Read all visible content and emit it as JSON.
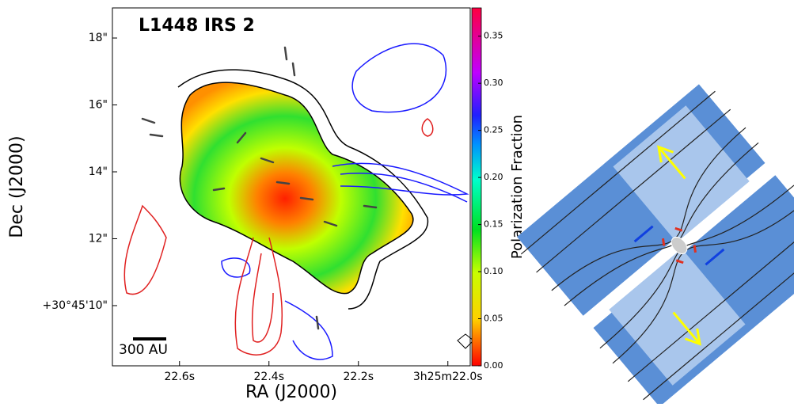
{
  "chart_data": {
    "type": "polarization-map",
    "title": "L1448 IRS 2",
    "x_label": "RA (J2000)",
    "y_label": "Dec (J2000)",
    "colorbar_label": "Polarization Fraction",
    "scale_bar": "300 AU",
    "xlim": [
      22.75,
      21.95
    ],
    "xticks": [
      {
        "value": 22.6,
        "label": "22.6s"
      },
      {
        "value": 22.4,
        "label": "22.4s"
      },
      {
        "value": 22.2,
        "label": "22.2s"
      },
      {
        "value": 22.0,
        "label": "3h25m22.0s"
      }
    ],
    "ylim": [
      8.2,
      18.9
    ],
    "yticks": [
      {
        "value": 10,
        "label": "+30°45'10\""
      },
      {
        "value": 12,
        "label": "12\""
      },
      {
        "value": 14,
        "label": "14\""
      },
      {
        "value": 16,
        "label": "16\""
      },
      {
        "value": 18,
        "label": "18\""
      }
    ],
    "clim": [
      0,
      0.38
    ],
    "cticks": [
      {
        "value": 0,
        "label": "0.00"
      },
      {
        "value": 0.05,
        "label": "0.05"
      },
      {
        "value": 0.1,
        "label": "0.10"
      },
      {
        "value": 0.15,
        "label": "0.15"
      },
      {
        "value": 0.2,
        "label": "0.20"
      },
      {
        "value": 0.25,
        "label": "0.25"
      },
      {
        "value": 0.3,
        "label": "0.30"
      },
      {
        "value": 0.35,
        "label": "0.35"
      }
    ]
  }
}
